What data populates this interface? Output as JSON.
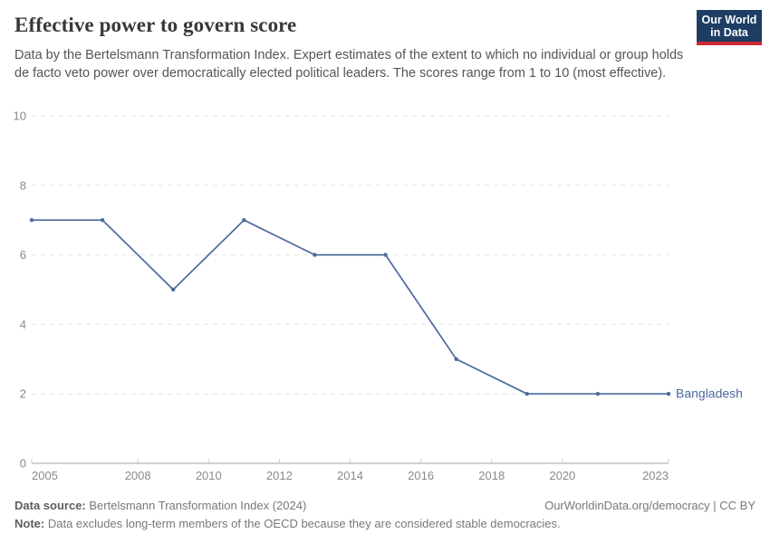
{
  "header": {
    "title": "Effective power to govern score",
    "subtitle": "Data by the Bertelsmann Transformation Index. Expert estimates of the extent to which no individual or group holds de facto veto power over democratically elected political leaders. The scores range from 1 to 10 (most effective)."
  },
  "logo": {
    "line1": "Our World",
    "line2": "in Data",
    "bg_color": "#1d3d63",
    "accent_color": "#cc2a36"
  },
  "chart_data": {
    "type": "line",
    "title": "Effective power to govern score",
    "x": [
      2005,
      2007,
      2009,
      2011,
      2013,
      2015,
      2017,
      2019,
      2021,
      2023
    ],
    "series": [
      {
        "name": "Bangladesh",
        "values": [
          7,
          7,
          5,
          7,
          6,
          6,
          3,
          2,
          2,
          2
        ],
        "color": "#4c6a9c"
      }
    ],
    "xlabel": "",
    "ylabel": "",
    "xlim": [
      2005,
      2023
    ],
    "ylim": [
      0,
      10
    ],
    "x_ticks": [
      2005,
      2008,
      2010,
      2012,
      2014,
      2016,
      2018,
      2020,
      2023
    ],
    "y_ticks": [
      0,
      2,
      4,
      6,
      8,
      10
    ],
    "grid": "horizontal-dashed",
    "legend_position": "end-of-line",
    "grid_color": "#e3e3e3",
    "axis_color": "#a5a5a5",
    "tick_color": "#cccccc"
  },
  "footer": {
    "source_label": "Data source:",
    "source_value": "Bertelsmann Transformation Index (2024)",
    "url": "OurWorldinData.org/democracy",
    "separator": " | ",
    "license": "CC BY",
    "note_label": "Note:",
    "note_value": "Data excludes long-term members of the OECD because they are considered stable democracies."
  }
}
